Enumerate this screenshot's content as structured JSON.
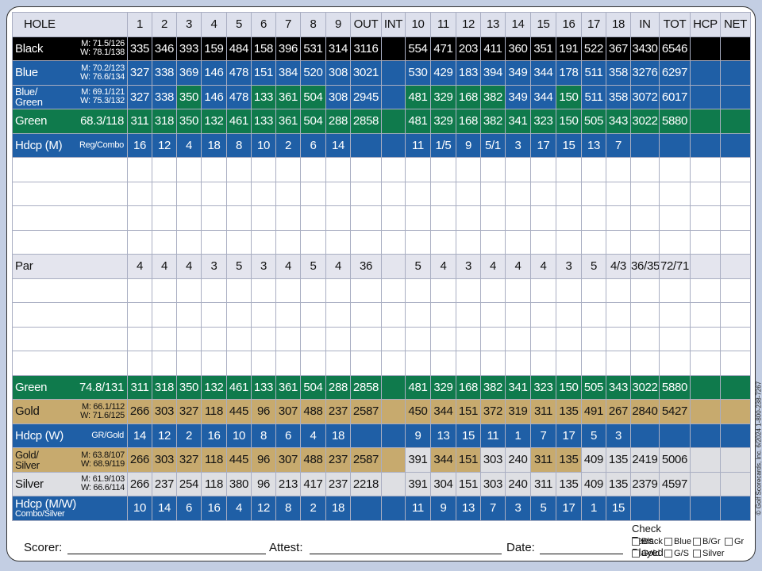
{
  "header": {
    "label": "HOLE",
    "columns": [
      1,
      2,
      3,
      4,
      5,
      6,
      7,
      8,
      9,
      "OUT",
      "INT",
      10,
      11,
      12,
      13,
      14,
      15,
      16,
      17,
      18,
      "IN",
      "TOT",
      "HCP",
      "NET"
    ]
  },
  "rows": [
    {
      "label": "Black",
      "ratings": [
        "M: 71.5/126",
        "W: 78.1/138"
      ],
      "front": [
        335,
        346,
        393,
        159,
        484,
        158,
        396,
        531,
        314
      ],
      "out": 3116,
      "back": [
        554,
        471,
        203,
        411,
        360,
        351,
        191,
        522,
        367
      ],
      "in": 3430,
      "tot": 6546
    },
    {
      "label": "Blue",
      "ratings": [
        "M: 70.2/123",
        "W: 76.6/134"
      ],
      "front": [
        327,
        338,
        369,
        146,
        478,
        151,
        384,
        520,
        308
      ],
      "out": 3021,
      "back": [
        530,
        429,
        183,
        394,
        349,
        344,
        178,
        511,
        358
      ],
      "in": 3276,
      "tot": 6297
    },
    {
      "label": "Blue/ Green",
      "ratings": [
        "M: 69.1/121",
        "W: 75.3/132"
      ],
      "front": [
        327,
        338,
        350,
        146,
        478,
        133,
        361,
        504,
        308
      ],
      "out": 2945,
      "back": [
        481,
        329,
        168,
        382,
        349,
        344,
        150,
        511,
        358
      ],
      "in": 3072,
      "tot": 6017
    },
    {
      "label": "Green",
      "rating": "68.3/118",
      "front": [
        311,
        318,
        350,
        132,
        461,
        133,
        361,
        504,
        288
      ],
      "out": 2858,
      "back": [
        481,
        329,
        168,
        382,
        341,
        323,
        150,
        505,
        343
      ],
      "in": 3022,
      "tot": 5880
    },
    {
      "label": "Hdcp (M)",
      "sub": "Reg/Combo",
      "front": [
        16,
        12,
        4,
        18,
        8,
        10,
        2,
        6,
        14
      ],
      "back": [
        11,
        "1/5",
        9,
        "5/1",
        3,
        17,
        15,
        13,
        7
      ]
    },
    {
      "label": "Par",
      "front": [
        4,
        4,
        4,
        3,
        5,
        3,
        4,
        5,
        4
      ],
      "out": 36,
      "back": [
        5,
        4,
        3,
        4,
        4,
        4,
        3,
        5,
        "4/3"
      ],
      "in": "36/35",
      "tot": "72/71"
    },
    {
      "label": "Green",
      "rating": "74.8/131",
      "front": [
        311,
        318,
        350,
        132,
        461,
        133,
        361,
        504,
        288
      ],
      "out": 2858,
      "back": [
        481,
        329,
        168,
        382,
        341,
        323,
        150,
        505,
        343
      ],
      "in": 3022,
      "tot": 5880
    },
    {
      "label": "Gold",
      "ratings": [
        "M: 66.1/112",
        "W: 71.6/125"
      ],
      "front": [
        266,
        303,
        327,
        118,
        445,
        96,
        307,
        488,
        237
      ],
      "out": 2587,
      "back": [
        450,
        344,
        151,
        372,
        319,
        311,
        135,
        491,
        267
      ],
      "in": 2840,
      "tot": 5427
    },
    {
      "label": "Hdcp (W)",
      "sub": "GR/Gold",
      "front": [
        14,
        12,
        2,
        16,
        10,
        8,
        6,
        4,
        18
      ],
      "back": [
        9,
        13,
        15,
        11,
        1,
        7,
        17,
        5,
        3
      ]
    },
    {
      "label": "Gold/ Silver",
      "ratings": [
        "M: 63.8/107",
        "W: 68.9/119"
      ],
      "front": [
        266,
        303,
        327,
        118,
        445,
        96,
        307,
        488,
        237
      ],
      "out": 2587,
      "back": [
        391,
        344,
        151,
        303,
        240,
        311,
        135,
        409,
        135
      ],
      "in": 2419,
      "tot": 5006
    },
    {
      "label": "Silver",
      "ratings": [
        "M: 61.9/103",
        "W: 66.6/114"
      ],
      "front": [
        266,
        237,
        254,
        118,
        380,
        96,
        213,
        417,
        237
      ],
      "out": 2218,
      "back": [
        391,
        304,
        151,
        303,
        240,
        311,
        135,
        409,
        135
      ],
      "in": 2379,
      "tot": 4597
    },
    {
      "label": "Hdcp (M/W)",
      "sub": "Combo/Silver",
      "front": [
        10,
        14,
        6,
        16,
        4,
        12,
        8,
        2,
        18
      ],
      "back": [
        11,
        9,
        13,
        7,
        3,
        5,
        17,
        1,
        15
      ]
    }
  ],
  "footer": {
    "scorer": "Scorer:",
    "attest": "Attest:",
    "date": "Date:",
    "check_title": "Check Tees Played",
    "tees": [
      "Black",
      "Blue",
      "B/Gr",
      "Gr",
      "Gold",
      "G/S",
      "Silver"
    ]
  },
  "copyright": "© Golf Scorecards, Inc. 6/2024 1-800-238-7267"
}
